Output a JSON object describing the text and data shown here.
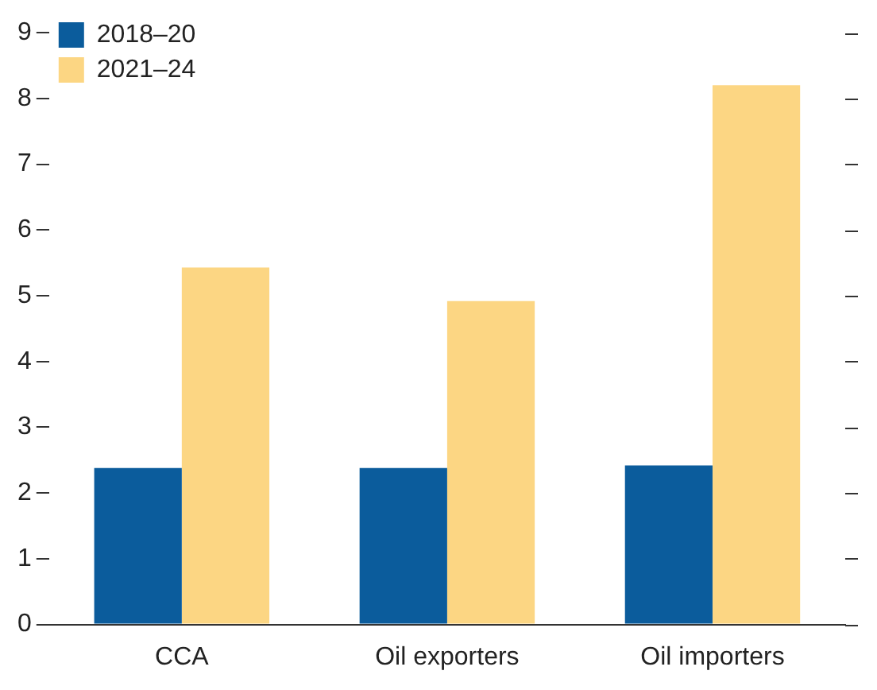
{
  "chart_data": {
    "type": "bar",
    "categories": [
      "CCA",
      "Oil exporters",
      "Oil importers"
    ],
    "series": [
      {
        "name": "2018–20",
        "color": "#0b5c9c",
        "values": [
          2.38,
          2.38,
          2.42
        ]
      },
      {
        "name": "2021–24",
        "color": "#fcd683",
        "values": [
          5.43,
          4.92,
          8.2
        ]
      }
    ],
    "ylim": [
      0,
      9
    ],
    "yticks": [
      0,
      1,
      2,
      3,
      4,
      5,
      6,
      7,
      8,
      9
    ],
    "grid": false,
    "legend": "top left"
  }
}
